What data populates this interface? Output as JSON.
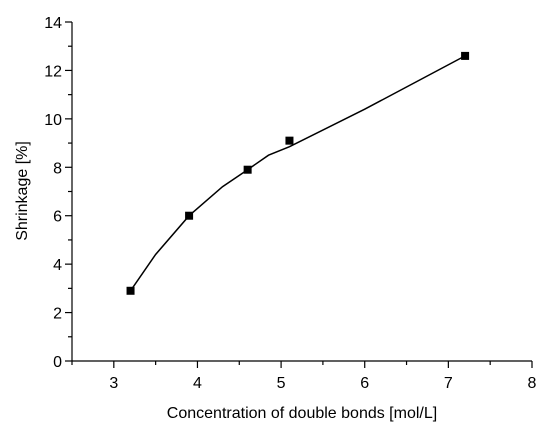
{
  "chart_data": {
    "type": "scatter",
    "title": "",
    "xlabel": "Concentration of double bonds [mol/L]",
    "ylabel": "Shrinkage [%]",
    "xlim": [
      2.5,
      8
    ],
    "ylim": [
      0,
      14
    ],
    "x_ticks": [
      3,
      4,
      5,
      6,
      7,
      8
    ],
    "y_ticks": [
      0,
      2,
      4,
      6,
      8,
      10,
      12,
      14
    ],
    "grid": false,
    "series": [
      {
        "marker": "square",
        "color": "#000000",
        "points": [
          {
            "x": 3.2,
            "y": 2.9
          },
          {
            "x": 3.9,
            "y": 6.0
          },
          {
            "x": 4.6,
            "y": 7.9
          },
          {
            "x": 5.1,
            "y": 9.1
          },
          {
            "x": 7.2,
            "y": 12.6
          }
        ]
      }
    ],
    "fit_line": {
      "color": "#000000",
      "points": [
        {
          "x": 3.2,
          "y": 2.9
        },
        {
          "x": 3.5,
          "y": 4.4
        },
        {
          "x": 3.9,
          "y": 6.0
        },
        {
          "x": 4.3,
          "y": 7.2
        },
        {
          "x": 4.6,
          "y": 7.9
        },
        {
          "x": 4.85,
          "y": 8.5
        },
        {
          "x": 5.1,
          "y": 8.85
        },
        {
          "x": 6.0,
          "y": 10.4
        },
        {
          "x": 7.2,
          "y": 12.6
        }
      ]
    }
  }
}
